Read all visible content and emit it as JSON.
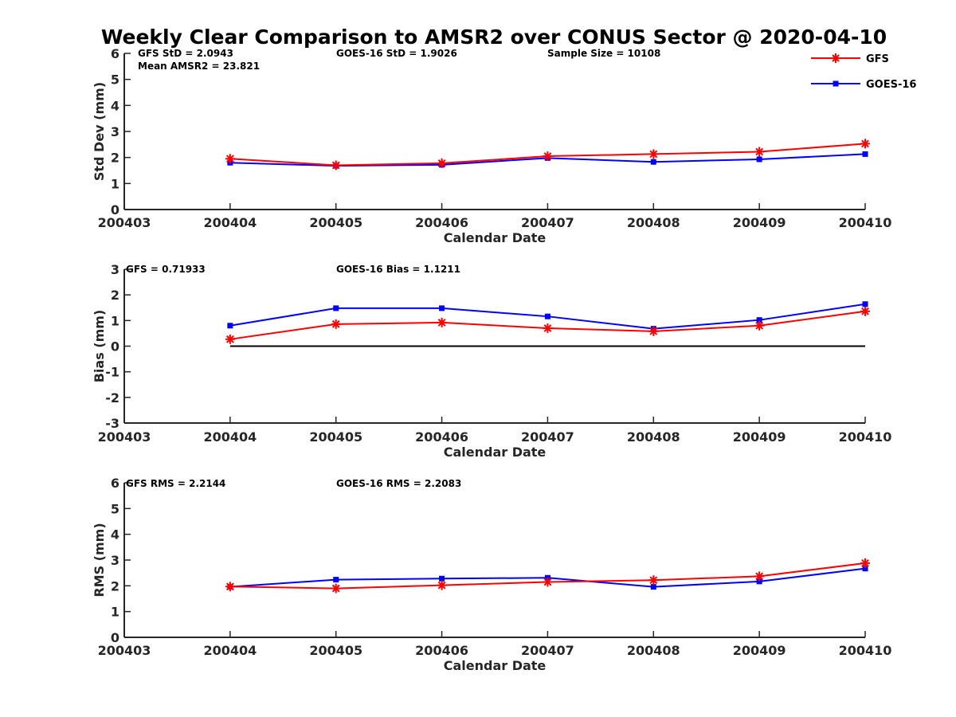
{
  "title": "Weekly Clear Comparison to AMSR2 over CONUS Sector @ 2020-04-10",
  "legend": [
    {
      "name": "GFS",
      "color": "#ff0000",
      "marker": "asterisk"
    },
    {
      "name": "GOES-16",
      "color": "#0000ff",
      "marker": "square"
    }
  ],
  "colors": {
    "GFS": "#ff0000",
    "GOES-16": "#0000ff",
    "zero_line": "#000000"
  },
  "chart_data": [
    {
      "type": "line",
      "xlabel": "Calendar Date",
      "ylabel": "Std Dev (mm)",
      "xticks": [
        "200403",
        "200404",
        "200405",
        "200406",
        "200407",
        "200408",
        "200409",
        "200410"
      ],
      "yticks": [
        "0",
        "1",
        "2",
        "3",
        "4",
        "5",
        "6"
      ],
      "ylim": [
        0,
        6
      ],
      "x": [
        "200404",
        "200405",
        "200406",
        "200407",
        "200408",
        "200409",
        "200410"
      ],
      "series": [
        {
          "name": "GFS",
          "values": [
            1.95,
            1.7,
            1.78,
            2.05,
            2.13,
            2.22,
            2.53
          ]
        },
        {
          "name": "GOES-16",
          "values": [
            1.8,
            1.68,
            1.72,
            1.98,
            1.83,
            1.93,
            2.13
          ]
        }
      ],
      "annotations": [
        "GFS StD = 2.0943",
        "GOES-16 StD = 1.9026",
        "Sample Size = 10108",
        "Mean AMSR2 = 23.821"
      ]
    },
    {
      "type": "line",
      "xlabel": "Calendar Date",
      "ylabel": "Bias (mm)",
      "xticks": [
        "200403",
        "200404",
        "200405",
        "200406",
        "200407",
        "200408",
        "200409",
        "200410"
      ],
      "yticks": [
        "-3",
        "-2",
        "-1",
        "0",
        "1",
        "2",
        "3"
      ],
      "ylim": [
        -3,
        3
      ],
      "zero_line": true,
      "x": [
        "200404",
        "200405",
        "200406",
        "200407",
        "200408",
        "200409",
        "200410"
      ],
      "series": [
        {
          "name": "GFS",
          "values": [
            0.27,
            0.86,
            0.92,
            0.7,
            0.58,
            0.8,
            1.36
          ]
        },
        {
          "name": "GOES-16",
          "values": [
            0.8,
            1.48,
            1.48,
            1.16,
            0.68,
            1.02,
            1.64
          ]
        }
      ],
      "annotations": [
        "GFS = 0.71933",
        "GOES-16 Bias  = 1.1211"
      ]
    },
    {
      "type": "line",
      "xlabel": "Calendar Date",
      "ylabel": "RMS (mm)",
      "xticks": [
        "200403",
        "200404",
        "200405",
        "200406",
        "200407",
        "200408",
        "200409",
        "200410"
      ],
      "yticks": [
        "0",
        "1",
        "2",
        "3",
        "4",
        "5",
        "6"
      ],
      "ylim": [
        0,
        6
      ],
      "x": [
        "200404",
        "200405",
        "200406",
        "200407",
        "200408",
        "200409",
        "200410"
      ],
      "series": [
        {
          "name": "GFS",
          "values": [
            1.97,
            1.9,
            2.02,
            2.15,
            2.22,
            2.37,
            2.88
          ]
        },
        {
          "name": "GOES-16",
          "values": [
            1.96,
            2.24,
            2.28,
            2.31,
            1.96,
            2.17,
            2.67
          ]
        }
      ],
      "annotations": [
        "GFS RMS = 2.2144",
        "GOES-16 RMS = 2.2083"
      ]
    }
  ]
}
